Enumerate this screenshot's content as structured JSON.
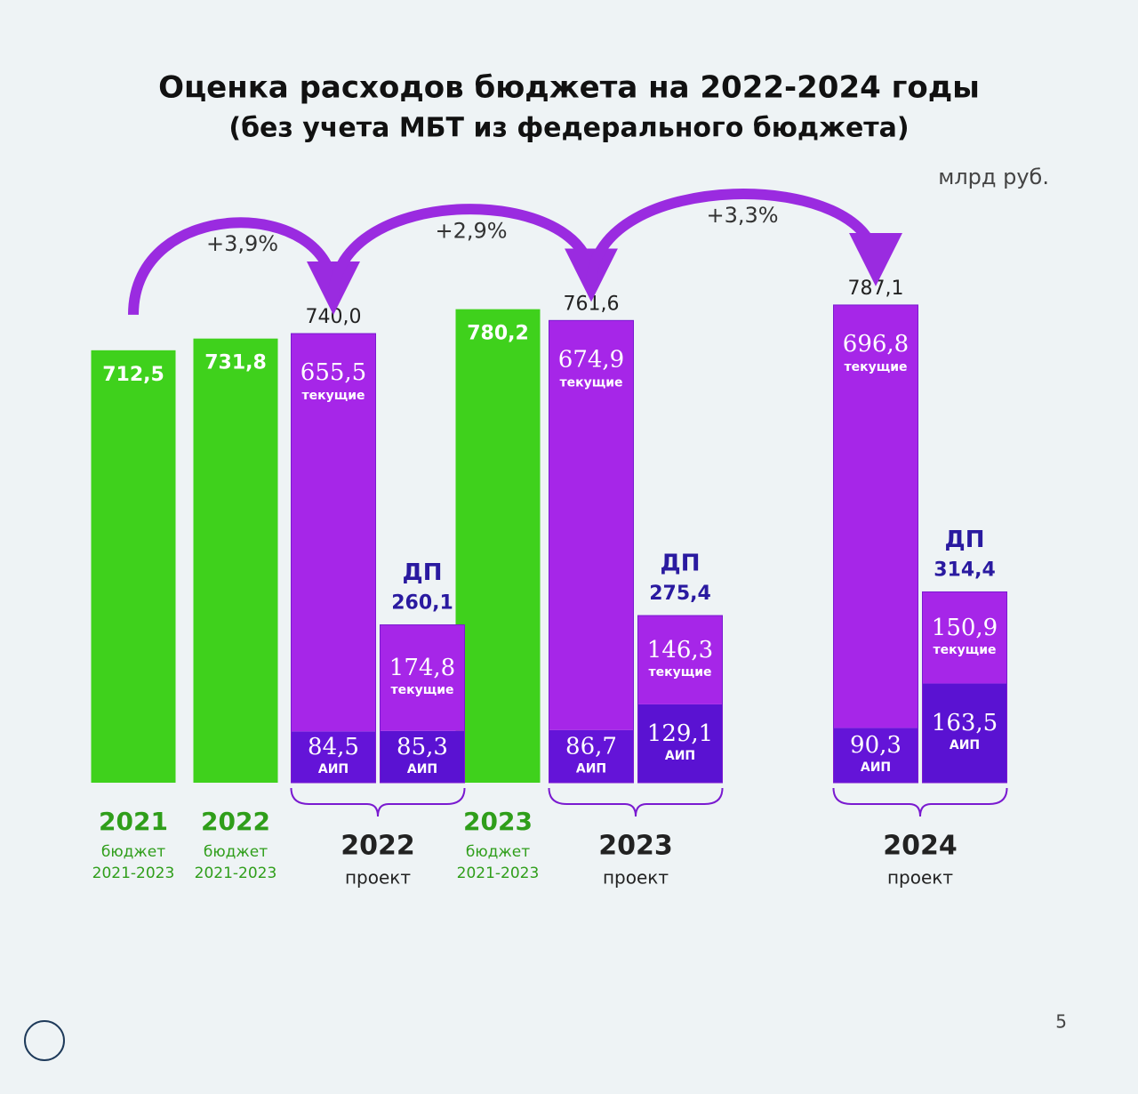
{
  "chart_data": {
    "type": "stacked-bar",
    "title": "Оценка расходов бюджета на 2022-2024 годы",
    "subtitle": "(без учета МБТ из федерального бюджета)",
    "unit": "млрд руб.",
    "ylim": [
      0,
      850
    ],
    "budget_bars": [
      {
        "year": "2021",
        "label": "бюджет",
        "period": "2021-2023",
        "value": 712.5,
        "value_label": "712,5",
        "color": "#3fd11c"
      },
      {
        "year": "2022",
        "label": "бюджет",
        "period": "2021-2023",
        "value": 731.8,
        "value_label": "731,8",
        "color": "#3fd11c"
      },
      {
        "year": "2023",
        "label": "бюджет",
        "period": "2021-2023",
        "value": 780.2,
        "value_label": "780,2",
        "color": "#3fd11c"
      }
    ],
    "projects": [
      {
        "year": "2022",
        "label": "проект",
        "main": {
          "total": 740.0,
          "total_label": "740,0",
          "segments": [
            {
              "name": "АИП",
              "value": 84.5,
              "value_label": "84,5",
              "color": "#6414d8"
            },
            {
              "name": "текущие",
              "value": 655.5,
              "value_label": "655,5",
              "color": "#a626e8"
            }
          ]
        },
        "dp": {
          "name": "ДП",
          "total": 260.1,
          "total_label": "260,1",
          "segments": [
            {
              "name": "АИП",
              "value": 85.3,
              "value_label": "85,3",
              "color": "#5a12d2"
            },
            {
              "name": "текущие",
              "value": 174.8,
              "value_label": "174,8",
              "color": "#a626e8"
            }
          ]
        }
      },
      {
        "year": "2023",
        "label": "проект",
        "main": {
          "total": 761.6,
          "total_label": "761,6",
          "segments": [
            {
              "name": "АИП",
              "value": 86.7,
              "value_label": "86,7",
              "color": "#6414d8"
            },
            {
              "name": "текущие",
              "value": 674.9,
              "value_label": "674,9",
              "color": "#a626e8"
            }
          ]
        },
        "dp": {
          "name": "ДП",
          "total": 275.4,
          "total_label": "275,4",
          "segments": [
            {
              "name": "АИП",
              "value": 129.1,
              "value_label": "129,1",
              "color": "#5a12d2"
            },
            {
              "name": "текущие",
              "value": 146.3,
              "value_label": "146,3",
              "color": "#a626e8"
            }
          ]
        }
      },
      {
        "year": "2024",
        "label": "проект",
        "main": {
          "total": 787.1,
          "total_label": "787,1",
          "segments": [
            {
              "name": "АИП",
              "value": 90.3,
              "value_label": "90,3",
              "color": "#6414d8"
            },
            {
              "name": "текущие",
              "value": 696.8,
              "value_label": "696,8",
              "color": "#a626e8"
            }
          ]
        },
        "dp": {
          "name": "ДП",
          "total": 314.4,
          "total_label": "314,4",
          "segments": [
            {
              "name": "АИП",
              "value": 163.5,
              "value_label": "163,5",
              "color": "#5a12d2"
            },
            {
              "name": "текущие",
              "value": 150.9,
              "value_label": "150,9",
              "color": "#a626e8"
            }
          ]
        }
      }
    ],
    "growth": [
      "+3,9%",
      "+2,9%",
      "+3,3%"
    ],
    "page_number": "5"
  }
}
